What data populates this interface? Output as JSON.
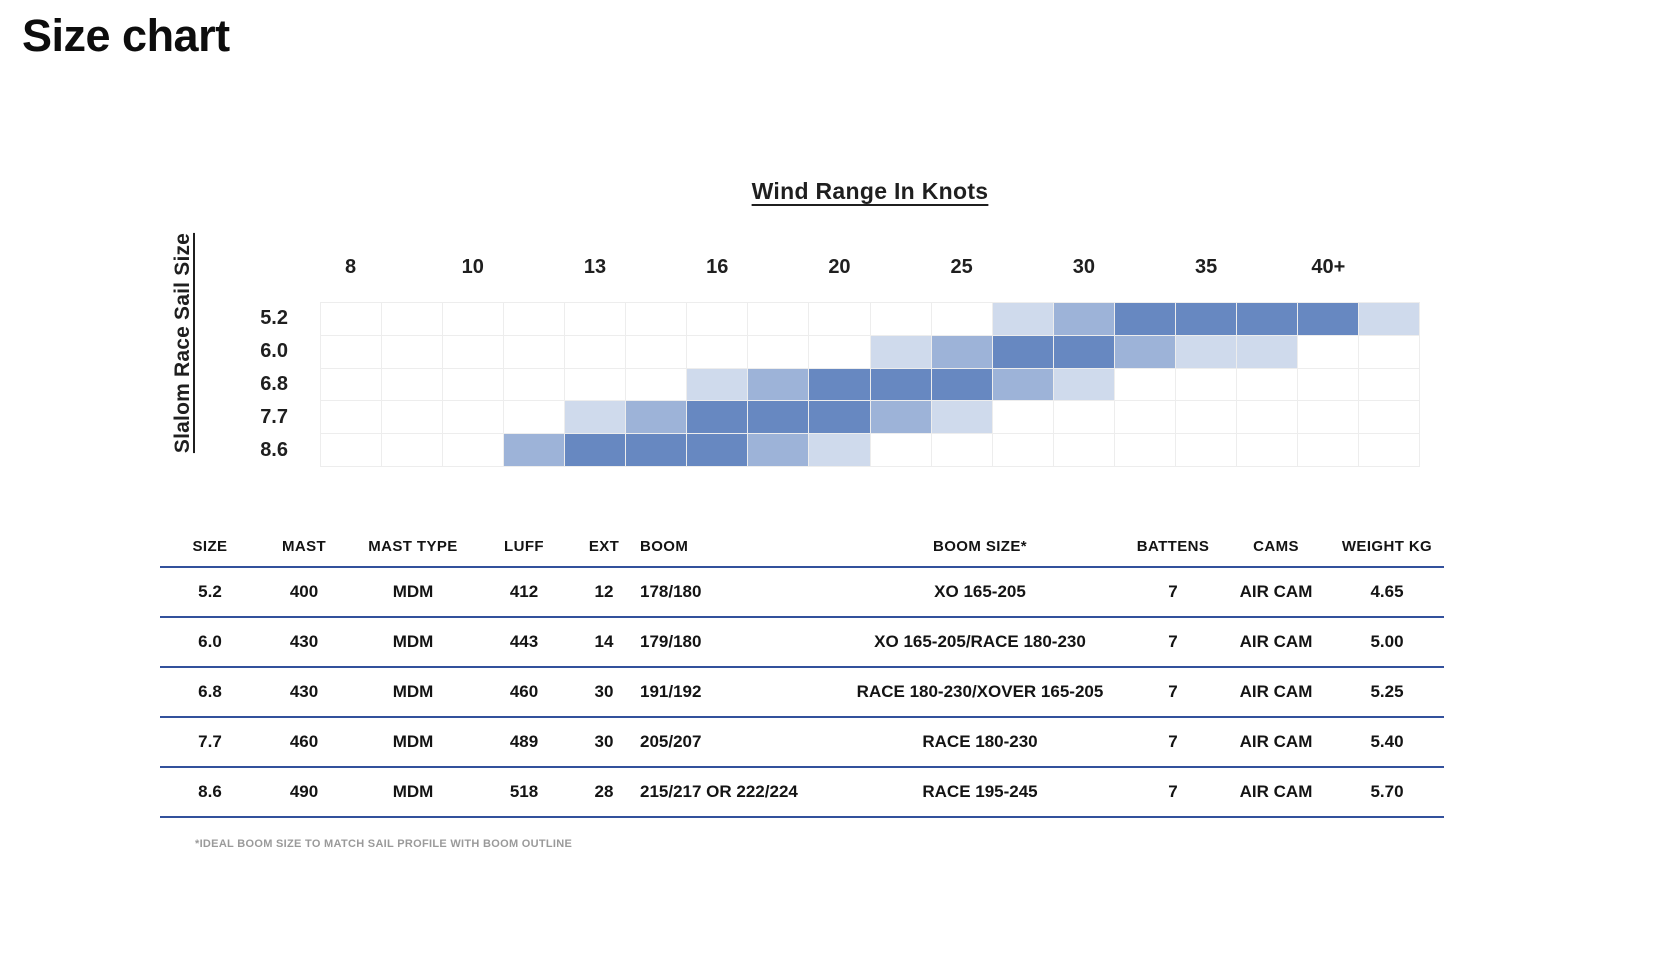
{
  "page": {
    "title": "Size chart"
  },
  "chart_data": {
    "type": "heatmap",
    "title": "Wind Range In Knots",
    "ylabel": "Slalom Race Sail Size",
    "x_tick_labels": [
      "8",
      "10",
      "13",
      "16",
      "20",
      "25",
      "30",
      "35",
      "40+"
    ],
    "rows": [
      "5.2",
      "6.0",
      "6.8",
      "7.7",
      "8.6"
    ],
    "columns": 18,
    "intensity_scale": "0=none, 1=light, 2=medium, 3=dark (relative suitability of wind range)",
    "intensity_colors": {
      "1": "#cfdaec",
      "2": "#9db3d8",
      "3": "#6788c1"
    },
    "cells": [
      [
        0,
        0,
        0,
        0,
        0,
        0,
        0,
        0,
        0,
        0,
        0,
        1,
        2,
        3,
        3,
        3,
        3,
        1
      ],
      [
        0,
        0,
        0,
        0,
        0,
        0,
        0,
        0,
        0,
        1,
        2,
        3,
        3,
        2,
        1,
        1,
        0,
        0
      ],
      [
        0,
        0,
        0,
        0,
        0,
        0,
        1,
        2,
        3,
        3,
        3,
        2,
        1,
        0,
        0,
        0,
        0,
        0
      ],
      [
        0,
        0,
        0,
        0,
        1,
        2,
        3,
        3,
        3,
        2,
        1,
        0,
        0,
        0,
        0,
        0,
        0,
        0
      ],
      [
        0,
        0,
        0,
        2,
        3,
        3,
        3,
        2,
        1,
        0,
        0,
        0,
        0,
        0,
        0,
        0,
        0,
        0
      ]
    ],
    "grid": true,
    "legend_position": "none"
  },
  "table": {
    "headers": [
      "SIZE",
      "MAST",
      "MAST TYPE",
      "LUFF",
      "EXT",
      "BOOM",
      "BOOM SIZE*",
      "BATTENS",
      "CAMS",
      "WEIGHT KG"
    ],
    "rows": [
      [
        "5.2",
        "400",
        "MDM",
        "412",
        "12",
        "178/180",
        "XO 165-205",
        "7",
        "AIR CAM",
        "4.65"
      ],
      [
        "6.0",
        "430",
        "MDM",
        "443",
        "14",
        "179/180",
        "XO 165-205/RACE 180-230",
        "7",
        "AIR CAM",
        "5.00"
      ],
      [
        "6.8",
        "430",
        "MDM",
        "460",
        "30",
        "191/192",
        "RACE 180-230/XOVER 165-205",
        "7",
        "AIR CAM",
        "5.25"
      ],
      [
        "7.7",
        "460",
        "MDM",
        "489",
        "30",
        "205/207",
        "RACE 180-230",
        "7",
        "AIR CAM",
        "5.40"
      ],
      [
        "8.6",
        "490",
        "MDM",
        "518",
        "28",
        "215/217 OR 222/224",
        "RACE 195-245",
        "7",
        "AIR CAM",
        "5.70"
      ]
    ],
    "footnote": "*IDEAL BOOM SIZE TO MATCH SAIL PROFILE WITH BOOM OUTLINE"
  }
}
